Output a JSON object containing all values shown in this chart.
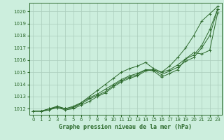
{
  "title": "Graphe pression niveau de la mer (hPa)",
  "bg_color": "#cceedd",
  "grid_color": "#aaccbb",
  "line_color": "#2d6a2d",
  "xlim": [
    -0.5,
    23.5
  ],
  "ylim": [
    1011.5,
    1020.7
  ],
  "yticks": [
    1012,
    1013,
    1014,
    1015,
    1016,
    1017,
    1018,
    1019,
    1020
  ],
  "xticks": [
    0,
    1,
    2,
    3,
    4,
    5,
    6,
    7,
    8,
    9,
    10,
    11,
    12,
    13,
    14,
    15,
    16,
    17,
    18,
    19,
    20,
    21,
    22,
    23
  ],
  "series": [
    {
      "x": [
        0,
        1,
        2,
        3,
        4,
        5,
        6,
        7,
        8,
        9,
        10,
        11,
        12,
        13,
        14,
        15,
        16,
        17,
        18,
        19,
        20,
        21,
        22,
        23
      ],
      "y": [
        1011.8,
        1011.8,
        1011.9,
        1012.1,
        1012.0,
        1012.2,
        1012.5,
        1013.0,
        1013.5,
        1014.0,
        1014.5,
        1015.0,
        1015.3,
        1015.5,
        1015.8,
        1015.3,
        1015.0,
        1015.5,
        1016.2,
        1017.0,
        1018.0,
        1019.2,
        1019.8,
        1020.4
      ]
    },
    {
      "x": [
        0,
        1,
        2,
        3,
        4,
        5,
        6,
        7,
        8,
        9,
        10,
        11,
        12,
        13,
        14,
        15,
        16,
        17,
        18,
        19,
        20,
        21,
        22,
        23
      ],
      "y": [
        1011.8,
        1011.8,
        1012.0,
        1012.1,
        1011.9,
        1012.0,
        1012.3,
        1012.6,
        1013.0,
        1013.3,
        1013.8,
        1014.2,
        1014.5,
        1014.7,
        1015.1,
        1015.2,
        1014.8,
        1015.1,
        1015.4,
        1015.9,
        1016.2,
        1017.0,
        1018.0,
        1020.2
      ]
    },
    {
      "x": [
        0,
        1,
        2,
        3,
        4,
        5,
        6,
        7,
        8,
        9,
        10,
        11,
        12,
        13,
        14,
        15,
        16,
        17,
        18,
        19,
        20,
        21,
        22,
        23
      ],
      "y": [
        1011.8,
        1011.8,
        1011.9,
        1012.2,
        1012.0,
        1012.1,
        1012.4,
        1012.8,
        1013.1,
        1013.4,
        1013.9,
        1014.3,
        1014.6,
        1014.8,
        1015.2,
        1015.2,
        1015.0,
        1015.2,
        1015.6,
        1016.1,
        1016.4,
        1017.2,
        1018.5,
        1020.2
      ]
    },
    {
      "x": [
        0,
        1,
        2,
        3,
        4,
        5,
        6,
        7,
        8,
        9,
        10,
        11,
        12,
        13,
        14,
        15,
        16,
        17,
        18,
        19,
        20,
        21,
        22,
        23
      ],
      "y": [
        1011.8,
        1011.8,
        1012.0,
        1012.2,
        1012.0,
        1012.1,
        1012.5,
        1012.9,
        1013.2,
        1013.6,
        1014.0,
        1014.4,
        1014.7,
        1014.9,
        1015.2,
        1015.1,
        1014.6,
        1014.9,
        1015.2,
        1016.1,
        1016.6,
        1016.5,
        1016.8,
        1019.9
      ]
    }
  ]
}
